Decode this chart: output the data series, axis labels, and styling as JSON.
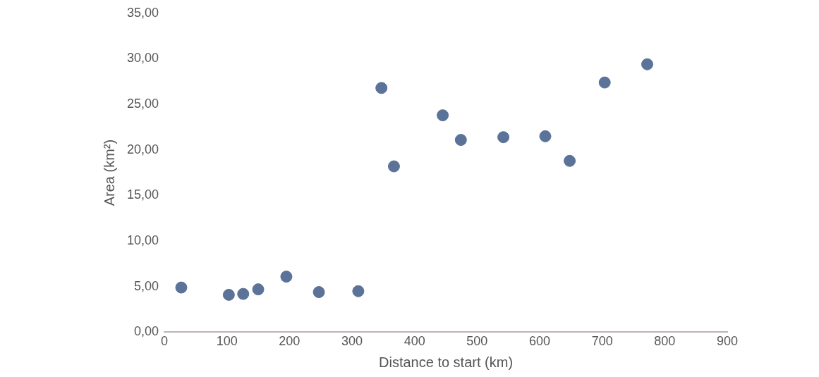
{
  "chart_data": {
    "type": "scatter",
    "xlabel": "Distance to start (km)",
    "ylabel": "Area (km²)",
    "x": [
      27,
      103,
      126,
      150,
      195,
      247,
      310,
      347,
      367,
      445,
      474,
      542,
      609,
      648,
      704,
      772
    ],
    "series": [
      {
        "color": "#5b7398",
        "values": [
          4.9,
          4.1,
          4.2,
          4.7,
          6.1,
          4.4,
          4.5,
          26.8,
          18.2,
          23.8,
          21.1,
          21.4,
          21.5,
          18.8,
          27.4,
          29.4
        ]
      }
    ],
    "xlim": [
      0,
      900
    ],
    "xticks": [
      0,
      100,
      200,
      300,
      400,
      500,
      600,
      700,
      800,
      900
    ],
    "ylim": [
      0,
      35
    ],
    "yticks": [
      {
        "value": 0,
        "label": "0,00"
      },
      {
        "value": 5,
        "label": "5,00"
      },
      {
        "value": 10,
        "label": "10,00"
      },
      {
        "value": 15,
        "label": "15,00"
      },
      {
        "value": 20,
        "label": "20,00"
      },
      {
        "value": 25,
        "label": "25,00"
      },
      {
        "value": 30,
        "label": "30,00"
      },
      {
        "value": 35,
        "label": "35,00"
      }
    ],
    "grid": false,
    "legend": false,
    "marker": "circle"
  }
}
